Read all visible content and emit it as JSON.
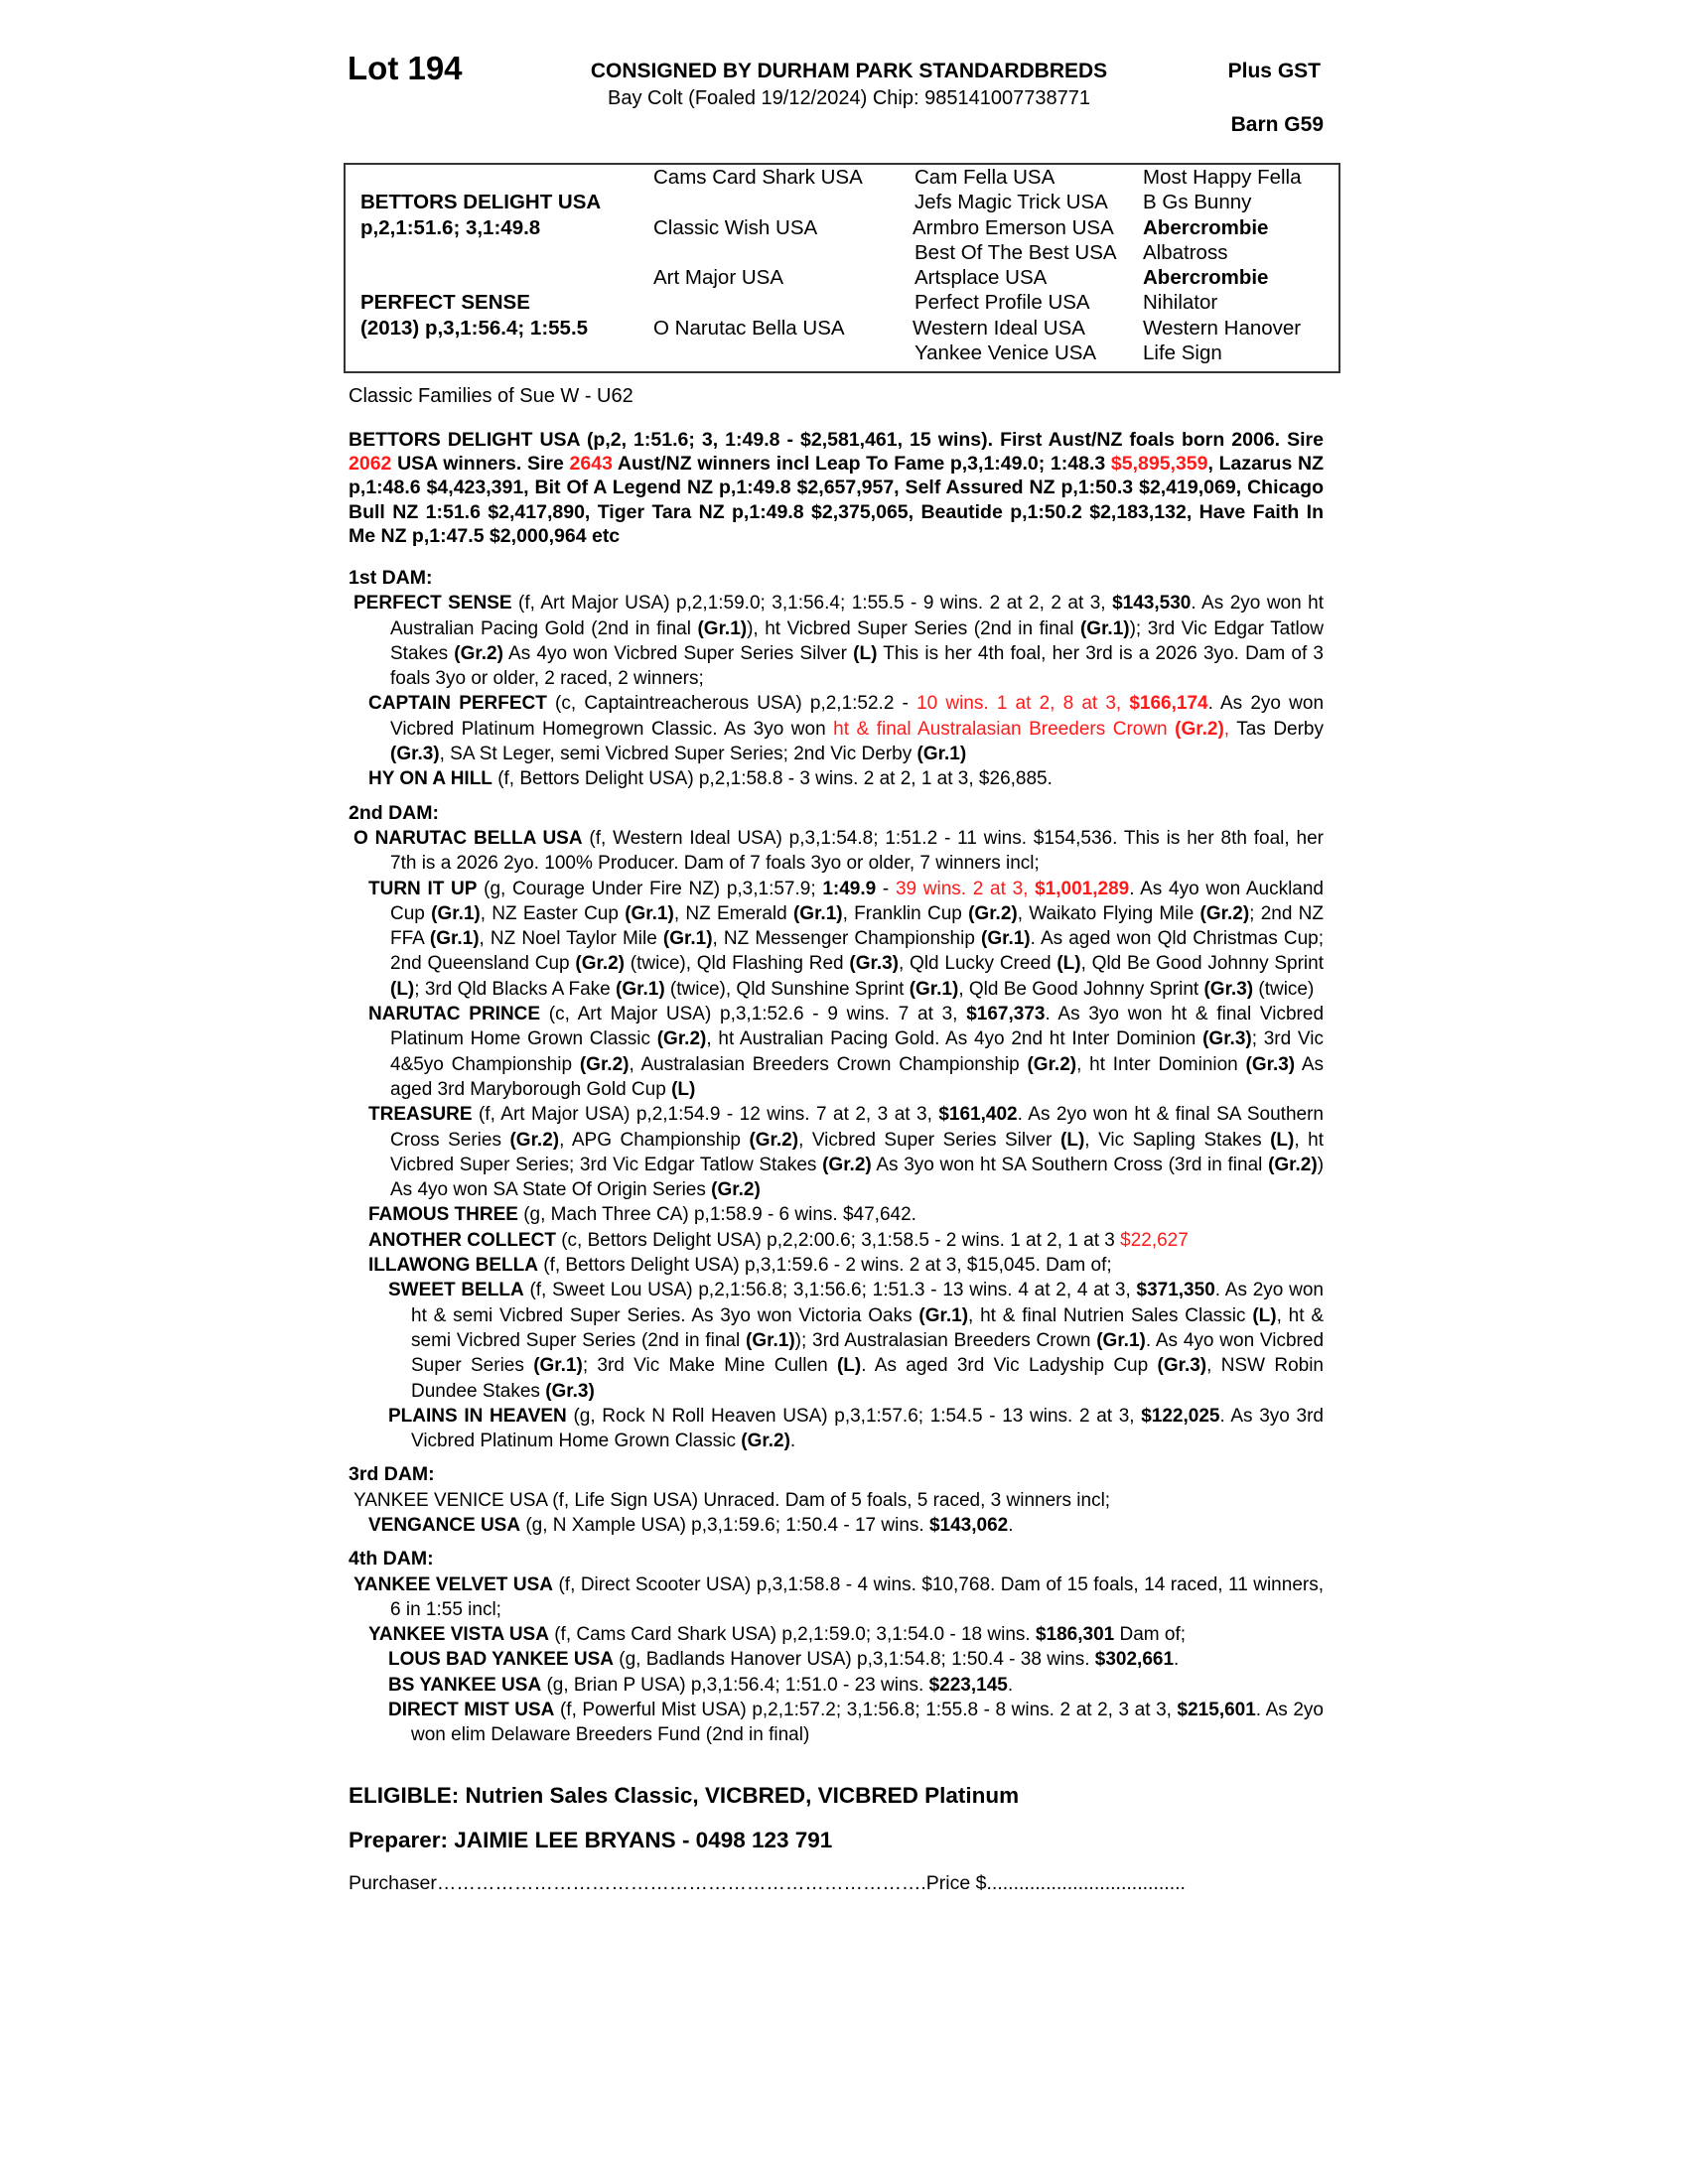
{
  "header": {
    "lot": "Lot 194",
    "consignor": "CONSIGNED BY DURHAM PARK STANDARDBREDS",
    "description": "Bay Colt (Foaled 19/12/2024) Chip: 985141007738771",
    "gst": "Plus GST",
    "barn": "Barn G59"
  },
  "pedigree": {
    "sire_name": "BETTORS DELIGHT USA",
    "sire_record": "p,2,1:51.6; 3,1:49.8",
    "dam_name": "PERFECT SENSE",
    "dam_record": "(2013) p,3,1:56.4; 1:55.5",
    "gen2": [
      "Cams Card Shark USA",
      "Classic Wish USA",
      "Art Major USA",
      "O Narutac Bella USA"
    ],
    "gen3": [
      "Cam Fella USA",
      "Jefs Magic Trick USA",
      "Armbro Emerson USA",
      "Best Of The Best USA",
      "Artsplace USA",
      "Perfect Profile USA",
      "Western Ideal USA",
      "Yankee Venice USA"
    ],
    "gen4": [
      "Most Happy Fella",
      "B Gs Bunny",
      "Abercrombie",
      "Albatross",
      "Abercrombie",
      "Nihilator",
      "Western Hanover",
      "Life Sign"
    ]
  },
  "family": "Classic Families of Sue W - U62",
  "sire_para": [
    {
      "t": "BETTORS DELIGHT USA (p,2, 1:51.6; 3, 1:49.8 - $2,581,461, 15 wins). First Aust/NZ foals born 2006. Sire ",
      "s": "b"
    },
    {
      "t": "2062",
      "s": "r"
    },
    {
      "t": " USA winners. Sire ",
      "s": "b"
    },
    {
      "t": "2643",
      "s": "r"
    },
    {
      "t": " Aust/NZ winners incl Leap To Fame p,3,1:49.0; 1:48.3 ",
      "s": "b"
    },
    {
      "t": "$5,895,359",
      "s": "r"
    },
    {
      "t": ", Lazarus NZ p,1:48.6 $4,423,391, Bit Of A Legend NZ p,1:49.8 $2,657,957, Self Assured NZ p,1:50.3 $2,419,069, Chicago Bull NZ 1:51.6 $2,417,890,  Tiger Tara NZ p,1:49.8 $2,375,065, Beautide p,1:50.2 $2,183,132, Have Faith In Me NZ p,1:47.5 $2,000,964 etc",
      "s": "b"
    }
  ],
  "sections": [
    {
      "heading": "1st DAM:",
      "entries": [
        {
          "level": 0,
          "segs": [
            {
              "t": "PERFECT SENSE",
              "s": "b"
            },
            {
              "t": " (f, Art Major USA) p,2,1:59.0; 3,1:56.4; 1:55.5 - 9 wins. 2 at 2, 2 at 3, ",
              "s": ""
            },
            {
              "t": "$143,530",
              "s": "b"
            },
            {
              "t": ". As 2yo won ht Australian Pacing Gold (2nd in final ",
              "s": ""
            },
            {
              "t": "(Gr.1)",
              "s": "b"
            },
            {
              "t": "), ht Vicbred Super Series (2nd in final ",
              "s": ""
            },
            {
              "t": "(Gr.1)",
              "s": "b"
            },
            {
              "t": "); 3rd Vic Edgar Tatlow Stakes ",
              "s": ""
            },
            {
              "t": "(Gr.2)",
              "s": "b"
            },
            {
              "t": " As 4yo won Vicbred Super Series Silver ",
              "s": ""
            },
            {
              "t": "(L)",
              "s": "b"
            },
            {
              "t": " This is her 4th foal, her 3rd is a 2026 3yo. Dam of 3 foals 3yo or older, 2 raced, 2 winners;",
              "s": ""
            }
          ]
        },
        {
          "level": 1,
          "segs": [
            {
              "t": "CAPTAIN PERFECT",
              "s": "b"
            },
            {
              "t": " (c, Captaintreacherous USA) p,2,1:52.2 - ",
              "s": ""
            },
            {
              "t": "10 wins. 1 at 2, 8 at 3, ",
              "s": "r"
            },
            {
              "t": "$166,174",
              "s": "r b"
            },
            {
              "t": ". As 2yo won Vicbred Platinum Homegrown Classic. As 3yo won ",
              "s": ""
            },
            {
              "t": "ht & final Australasian Breeders Crown ",
              "s": "r"
            },
            {
              "t": "(Gr.2)",
              "s": "r b"
            },
            {
              "t": ",",
              "s": "r"
            },
            {
              "t": " Tas Derby ",
              "s": ""
            },
            {
              "t": "(Gr.3)",
              "s": "b"
            },
            {
              "t": ", SA St Leger, semi Vicbred Super Series; 2nd Vic Derby ",
              "s": ""
            },
            {
              "t": "(Gr.1)",
              "s": "b"
            }
          ]
        },
        {
          "level": 1,
          "segs": [
            {
              "t": "HY ON A HILL",
              "s": "b"
            },
            {
              "t": " (f, Bettors Delight USA) p,2,1:58.8 - 3 wins. 2 at 2, 1 at 3, $26,885.",
              "s": ""
            }
          ]
        }
      ]
    },
    {
      "heading": "2nd DAM:",
      "entries": [
        {
          "level": 0,
          "segs": [
            {
              "t": "O NARUTAC BELLA USA",
              "s": "b"
            },
            {
              "t": " (f, Western Ideal USA) p,3,1:54.8; 1:51.2 - 11 wins. $154,536. This is her 8th foal, her 7th is a 2026 2yo. 100% Producer. Dam of 7 foals 3yo or older, 7 winners incl;",
              "s": ""
            }
          ]
        },
        {
          "level": 1,
          "segs": [
            {
              "t": "TURN IT UP",
              "s": "b"
            },
            {
              "t": " (g, Courage Under Fire NZ) p,3,1:57.9; ",
              "s": ""
            },
            {
              "t": "1:49.9",
              "s": "b"
            },
            {
              "t": " - ",
              "s": ""
            },
            {
              "t": "39 wins. 2 at 3, ",
              "s": "r"
            },
            {
              "t": "$1,001,289",
              "s": "r b"
            },
            {
              "t": ". As 4yo won Auckland Cup ",
              "s": ""
            },
            {
              "t": "(Gr.1)",
              "s": "b"
            },
            {
              "t": ", NZ Easter Cup ",
              "s": ""
            },
            {
              "t": "(Gr.1)",
              "s": "b"
            },
            {
              "t": ", NZ Emerald ",
              "s": ""
            },
            {
              "t": "(Gr.1)",
              "s": "b"
            },
            {
              "t": ", Franklin Cup ",
              "s": ""
            },
            {
              "t": "(Gr.2)",
              "s": "b"
            },
            {
              "t": ", Waikato Flying Mile ",
              "s": ""
            },
            {
              "t": "(Gr.2)",
              "s": "b"
            },
            {
              "t": "; 2nd NZ FFA ",
              "s": ""
            },
            {
              "t": "(Gr.1)",
              "s": "b"
            },
            {
              "t": ", NZ Noel Taylor Mile ",
              "s": ""
            },
            {
              "t": "(Gr.1)",
              "s": "b"
            },
            {
              "t": ", NZ Messenger Championship ",
              "s": ""
            },
            {
              "t": "(Gr.1)",
              "s": "b"
            },
            {
              "t": ". As aged won Qld Christmas Cup; 2nd Queensland Cup ",
              "s": ""
            },
            {
              "t": "(Gr.2)",
              "s": "b"
            },
            {
              "t": " (twice), Qld Flashing Red ",
              "s": ""
            },
            {
              "t": "(Gr.3)",
              "s": "b"
            },
            {
              "t": ", Qld Lucky Creed ",
              "s": ""
            },
            {
              "t": "(L)",
              "s": "b"
            },
            {
              "t": ", Qld Be Good Johnny Sprint ",
              "s": ""
            },
            {
              "t": "(L)",
              "s": "b"
            },
            {
              "t": "; 3rd Qld Blacks A Fake ",
              "s": ""
            },
            {
              "t": "(Gr.1)",
              "s": "b"
            },
            {
              "t": " (twice), Qld Sunshine Sprint ",
              "s": ""
            },
            {
              "t": "(Gr.1)",
              "s": "b"
            },
            {
              "t": ", Qld Be Good Johnny Sprint ",
              "s": ""
            },
            {
              "t": "(Gr.3)",
              "s": "b"
            },
            {
              "t": " (twice)",
              "s": ""
            }
          ]
        },
        {
          "level": 1,
          "segs": [
            {
              "t": "NARUTAC PRINCE",
              "s": "b"
            },
            {
              "t": " (c, Art Major USA) p,3,1:52.6 - 9 wins. 7 at 3, ",
              "s": ""
            },
            {
              "t": "$167,373",
              "s": "b"
            },
            {
              "t": ". As 3yo won ht & final Vicbred Platinum Home Grown Classic ",
              "s": ""
            },
            {
              "t": "(Gr.2)",
              "s": "b"
            },
            {
              "t": ", ht Australian Pacing Gold. As 4yo 2nd ht Inter Dominion ",
              "s": ""
            },
            {
              "t": "(Gr.3)",
              "s": "b"
            },
            {
              "t": "; 3rd Vic 4&5yo Championship ",
              "s": ""
            },
            {
              "t": "(Gr.2)",
              "s": "b"
            },
            {
              "t": ", Australasian Breeders Crown Championship ",
              "s": ""
            },
            {
              "t": "(Gr.2)",
              "s": "b"
            },
            {
              "t": ", ht Inter Dominion ",
              "s": ""
            },
            {
              "t": "(Gr.3)",
              "s": "b"
            },
            {
              "t": " As aged 3rd Maryborough Gold Cup ",
              "s": ""
            },
            {
              "t": "(L)",
              "s": "b"
            }
          ]
        },
        {
          "level": 1,
          "segs": [
            {
              "t": "TREASURE",
              "s": "b"
            },
            {
              "t": " (f, Art Major USA) p,2,1:54.9 - 12 wins. 7 at 2, 3 at 3, ",
              "s": ""
            },
            {
              "t": "$161,402",
              "s": "b"
            },
            {
              "t": ". As 2yo won ht & final SA Southern Cross Series ",
              "s": ""
            },
            {
              "t": "(Gr.2)",
              "s": "b"
            },
            {
              "t": ", APG Championship ",
              "s": ""
            },
            {
              "t": "(Gr.2)",
              "s": "b"
            },
            {
              "t": ", Vicbred Super Series Silver ",
              "s": ""
            },
            {
              "t": "(L)",
              "s": "b"
            },
            {
              "t": ", Vic Sapling Stakes ",
              "s": ""
            },
            {
              "t": "(L)",
              "s": "b"
            },
            {
              "t": ", ht Vicbred Super Series; 3rd Vic Edgar Tatlow Stakes ",
              "s": ""
            },
            {
              "t": "(Gr.2)",
              "s": "b"
            },
            {
              "t": " As 3yo won ht SA Southern Cross (3rd in final ",
              "s": ""
            },
            {
              "t": "(Gr.2)",
              "s": "b"
            },
            {
              "t": ") As 4yo won SA State Of Origin Series ",
              "s": ""
            },
            {
              "t": "(Gr.2)",
              "s": "b"
            }
          ]
        },
        {
          "level": 1,
          "segs": [
            {
              "t": "FAMOUS THREE",
              "s": "b"
            },
            {
              "t": " (g, Mach Three CA) p,1:58.9 - 6 wins. $47,642.",
              "s": ""
            }
          ]
        },
        {
          "level": 1,
          "segs": [
            {
              "t": "ANOTHER COLLECT",
              "s": "b"
            },
            {
              "t": " (c, Bettors Delight USA) p,2,2:00.6; 3,1:58.5 - 2 wins. 1 at 2, 1 at 3 ",
              "s": ""
            },
            {
              "t": "$22,627",
              "s": "r"
            }
          ]
        },
        {
          "level": 1,
          "segs": [
            {
              "t": "ILLAWONG BELLA",
              "s": "b"
            },
            {
              "t": " (f, Bettors Delight USA) p,3,1:59.6 - 2 wins. 2 at 3, $15,045. Dam of;",
              "s": ""
            }
          ]
        },
        {
          "level": 2,
          "segs": [
            {
              "t": "SWEET BELLA",
              "s": "b"
            },
            {
              "t": " (f, Sweet Lou USA) p,2,1:56.8; 3,1:56.6; 1:51.3 - 13 wins. 4 at 2, 4 at 3, ",
              "s": ""
            },
            {
              "t": "$371,350",
              "s": "b"
            },
            {
              "t": ". As 2yo won ht & semi Vicbred Super Series. As 3yo won Victoria Oaks ",
              "s": ""
            },
            {
              "t": "(Gr.1)",
              "s": "b"
            },
            {
              "t": ", ht & final Nutrien Sales Classic ",
              "s": ""
            },
            {
              "t": "(L)",
              "s": "b"
            },
            {
              "t": ", ht & semi Vicbred Super Series (2nd in final ",
              "s": ""
            },
            {
              "t": "(Gr.1)",
              "s": "b"
            },
            {
              "t": "); 3rd Australasian Breeders Crown ",
              "s": ""
            },
            {
              "t": "(Gr.1)",
              "s": "b"
            },
            {
              "t": ". As 4yo won Vicbred Super Series ",
              "s": ""
            },
            {
              "t": "(Gr.1)",
              "s": "b"
            },
            {
              "t": "; 3rd Vic Make Mine Cullen ",
              "s": ""
            },
            {
              "t": "(L)",
              "s": "b"
            },
            {
              "t": ". As aged 3rd Vic Ladyship Cup ",
              "s": ""
            },
            {
              "t": "(Gr.3)",
              "s": "b"
            },
            {
              "t": ", NSW Robin Dundee Stakes ",
              "s": ""
            },
            {
              "t": "(Gr.3)",
              "s": "b"
            }
          ]
        },
        {
          "level": 2,
          "segs": [
            {
              "t": "PLAINS IN HEAVEN",
              "s": "b"
            },
            {
              "t": " (g, Rock N Roll Heaven USA) p,3,1:57.6; 1:54.5 - 13 wins. 2 at 3, ",
              "s": ""
            },
            {
              "t": "$122,025",
              "s": "b"
            },
            {
              "t": ". As 3yo 3rd Vicbred Platinum Home Grown Classic ",
              "s": ""
            },
            {
              "t": "(Gr.2)",
              "s": "b"
            },
            {
              "t": ".",
              "s": ""
            }
          ]
        }
      ]
    },
    {
      "heading": "3rd DAM:",
      "entries": [
        {
          "level": 0,
          "segs": [
            {
              "t": "YANKEE VENICE USA (f, Life Sign USA) Unraced. Dam of 5 foals, 5 raced, 3 winners incl;",
              "s": ""
            }
          ]
        },
        {
          "level": 1,
          "segs": [
            {
              "t": "VENGANCE USA",
              "s": "b"
            },
            {
              "t": " (g, N Xample USA) p,3,1:59.6; 1:50.4 - 17 wins. ",
              "s": ""
            },
            {
              "t": "$143,062",
              "s": "b"
            },
            {
              "t": ".",
              "s": ""
            }
          ]
        }
      ]
    },
    {
      "heading": "4th DAM:",
      "entries": [
        {
          "level": 0,
          "segs": [
            {
              "t": "YANKEE VELVET USA",
              "s": "b"
            },
            {
              "t": " (f, Direct Scooter USA) p,3,1:58.8 - 4 wins. $10,768. Dam of 15 foals, 14 raced, 11 winners, 6 in 1:55 incl;",
              "s": ""
            }
          ]
        },
        {
          "level": 1,
          "segs": [
            {
              "t": "YANKEE VISTA USA",
              "s": "b"
            },
            {
              "t": " (f, Cams Card Shark USA) p,2,1:59.0; 3,1:54.0 - 18 wins. ",
              "s": ""
            },
            {
              "t": "$186,301",
              "s": "b"
            },
            {
              "t": " Dam of;",
              "s": ""
            }
          ]
        },
        {
          "level": 2,
          "segs": [
            {
              "t": "LOUS BAD YANKEE USA",
              "s": "b"
            },
            {
              "t": " (g, Badlands Hanover USA) p,3,1:54.8; 1:50.4 - 38 wins. ",
              "s": ""
            },
            {
              "t": "$302,661",
              "s": "b"
            },
            {
              "t": ".",
              "s": ""
            }
          ]
        },
        {
          "level": 2,
          "segs": [
            {
              "t": "BS YANKEE USA",
              "s": "b"
            },
            {
              "t": " (g, Brian P USA) p,3,1:56.4; 1:51.0 - 23 wins. ",
              "s": ""
            },
            {
              "t": "$223,145",
              "s": "b"
            },
            {
              "t": ".",
              "s": ""
            }
          ]
        },
        {
          "level": 2,
          "segs": [
            {
              "t": "DIRECT MIST USA",
              "s": "b"
            },
            {
              "t": " (f, Powerful Mist USA) p,2,1:57.2; 3,1:56.8; 1:55.8 - 8 wins. 2 at 2, 3 at 3, ",
              "s": ""
            },
            {
              "t": "$215,601",
              "s": "b"
            },
            {
              "t": ". As 2yo won elim Delaware Breeders Fund (2nd in final)",
              "s": ""
            }
          ]
        }
      ]
    }
  ],
  "eligible": "ELIGIBLE: Nutrien Sales Classic, VICBRED, VICBRED Platinum",
  "preparer": "Preparer: JAIMIE LEE BRYANS - 0498 123 791",
  "purchaser": {
    "label": "Purchaser",
    "dots1": "………………………………………………………………….",
    "price_label": "Price $",
    "dots2": "....................................."
  },
  "colors": {
    "highlight": "#ff1a1a",
    "text": "#000000",
    "border": "#333333"
  }
}
